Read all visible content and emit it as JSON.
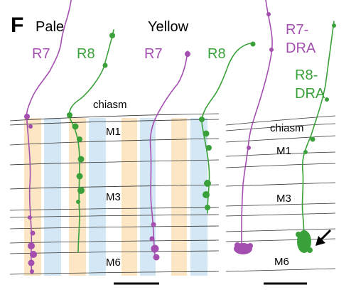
{
  "panel_label": "F",
  "groups": {
    "pale": "Pale",
    "yellow": "Yellow"
  },
  "cells": {
    "pale_r7": "R7",
    "pale_r8": "R8",
    "yellow_r7": "R7",
    "yellow_r8": "R8",
    "dra_r7": "R7-\nDRA",
    "dra_r8": "R8-\nDRA"
  },
  "layers": {
    "left": {
      "chiasm": "chiasm",
      "m1": "M1",
      "m3": "M3",
      "m6": "M6"
    },
    "right": {
      "chiasm": "chiasm",
      "m1": "M1",
      "m3": "M3",
      "m6": "M6"
    }
  },
  "colors": {
    "r7": "#a44fb0",
    "r8": "#3aa13a",
    "orange_band": "#fde6c4",
    "blue_band": "#d3e8f4",
    "layer_line": "#333333",
    "scale_bar": "#000000"
  }
}
